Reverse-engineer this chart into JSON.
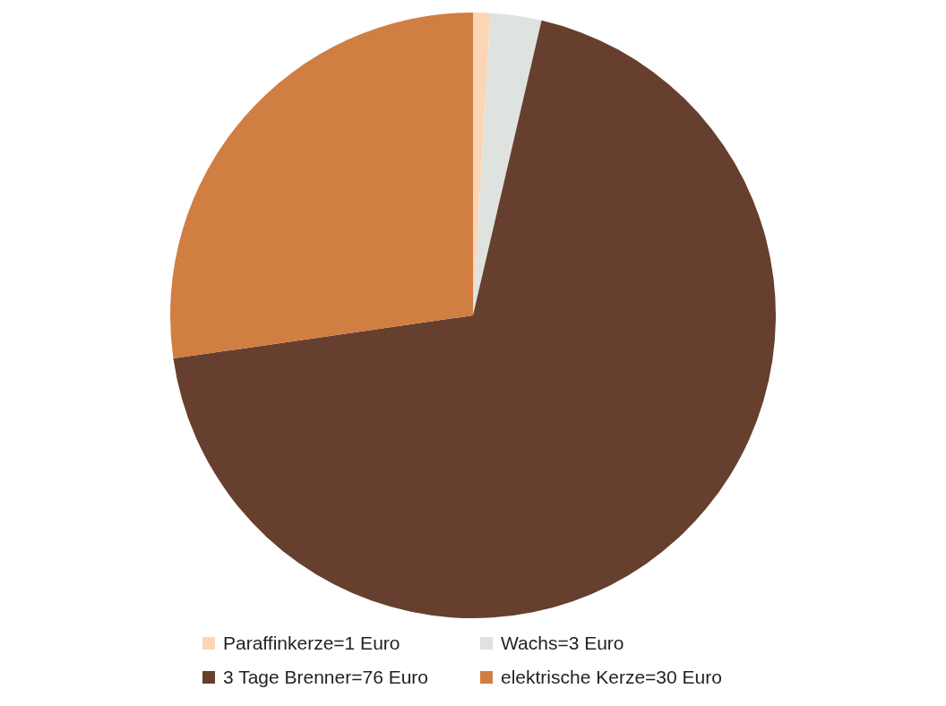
{
  "chart_data": {
    "type": "pie",
    "categories": [
      "Paraffinkerze=1 Euro",
      "Wachs=3 Euro",
      "3 Tage Brenner=76 Euro",
      "elektrische Kerze=30 Euro"
    ],
    "values": [
      1,
      3,
      76,
      30
    ],
    "colors": [
      "#fcd5b5",
      "#dfe3e0",
      "#673f2e",
      "#d07e42"
    ],
    "legend": "bottom"
  }
}
